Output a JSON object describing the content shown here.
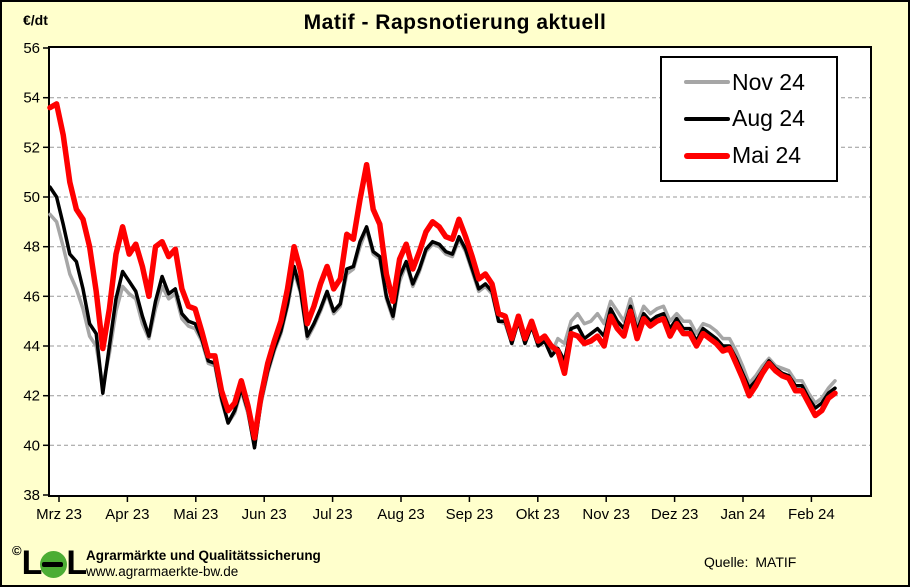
{
  "chart_data": {
    "type": "line",
    "title": "Matif - Rapsnotierung aktuell",
    "ylabel": "€/dt",
    "xlabel": "",
    "ylim": [
      38,
      56
    ],
    "grid": "horizontal-dashed",
    "legend_position": "top-right",
    "y_ticks": [
      56,
      54,
      52,
      50,
      48,
      46,
      44,
      42,
      40,
      38
    ],
    "x_ticks": [
      "Mrz 23",
      "Apr 23",
      "Mai 23",
      "Jun 23",
      "Jul 23",
      "Aug 23",
      "Sep 23",
      "Okt 23",
      "Nov 23",
      "Dez 23",
      "Jan 24",
      "Feb 24"
    ],
    "series": [
      {
        "name": "Nov 24",
        "color": "#A6A6A6",
        "width": 3.5,
        "values": [
          49.3,
          49.0,
          48.0,
          46.9,
          46.3,
          45.5,
          44.4,
          44.0,
          42.4,
          43.7,
          45.4,
          46.4,
          46.1,
          45.9,
          44.9,
          44.3,
          45.5,
          46.4,
          45.9,
          46.1,
          45.1,
          44.8,
          44.7,
          44.2,
          43.3,
          43.2,
          41.8,
          40.9,
          41.3,
          42.2,
          41.3,
          40.0,
          41.7,
          42.9,
          43.8,
          44.5,
          45.6,
          47.0,
          46.1,
          44.3,
          44.8,
          45.4,
          46.1,
          45.3,
          45.6,
          46.9,
          47.1,
          48.0,
          48.7,
          47.7,
          47.5,
          45.9,
          45.1,
          46.6,
          47.3,
          46.4,
          47.0,
          47.8,
          48.1,
          48.0,
          47.7,
          47.6,
          48.3,
          47.8,
          47.0,
          46.2,
          46.4,
          46.1,
          45.0,
          44.9,
          44.1,
          45.0,
          44.1,
          44.8,
          44.1,
          44.3,
          43.7,
          44.3,
          44.1,
          45.0,
          45.3,
          44.9,
          45.0,
          45.3,
          44.9,
          45.8,
          45.4,
          45.0,
          45.9,
          44.9,
          45.6,
          45.3,
          45.5,
          45.6,
          45.0,
          45.3,
          45.0,
          45.0,
          44.5,
          44.9,
          44.8,
          44.6,
          44.3,
          44.3,
          43.8,
          43.2,
          42.5,
          42.8,
          43.2,
          43.5,
          43.2,
          43.1,
          43.0,
          42.6,
          42.6,
          42.1,
          41.7,
          41.9,
          42.3,
          42.6
        ]
      },
      {
        "name": "Aug 24",
        "color": "#000000",
        "width": 3.5,
        "values": [
          50.4,
          50.0,
          48.9,
          47.7,
          47.4,
          46.3,
          44.9,
          44.5,
          42.1,
          44.0,
          45.9,
          47.0,
          46.6,
          46.2,
          45.2,
          44.4,
          45.8,
          46.8,
          46.1,
          46.3,
          45.3,
          45.0,
          44.9,
          44.3,
          43.4,
          43.3,
          41.9,
          40.9,
          41.4,
          42.3,
          41.4,
          39.9,
          41.8,
          43.0,
          43.9,
          44.6,
          45.7,
          47.2,
          46.2,
          44.4,
          44.9,
          45.5,
          46.2,
          45.4,
          45.7,
          47.1,
          47.2,
          48.2,
          48.8,
          47.8,
          47.6,
          46.0,
          45.2,
          46.8,
          47.4,
          46.5,
          47.1,
          47.9,
          48.2,
          48.1,
          47.8,
          47.7,
          48.4,
          47.9,
          47.1,
          46.3,
          46.5,
          46.2,
          45.0,
          45.0,
          44.1,
          45.0,
          44.1,
          44.8,
          44.0,
          44.2,
          43.6,
          43.9,
          43.4,
          44.7,
          44.8,
          44.3,
          44.5,
          44.7,
          44.4,
          45.5,
          45.0,
          44.7,
          45.6,
          44.6,
          45.3,
          45.0,
          45.2,
          45.3,
          44.7,
          45.1,
          44.7,
          44.7,
          44.2,
          44.7,
          44.5,
          44.3,
          44.0,
          44.0,
          43.5,
          42.9,
          42.3,
          42.6,
          43.0,
          43.4,
          43.1,
          42.9,
          42.8,
          42.4,
          42.4,
          41.9,
          41.5,
          41.7,
          42.1,
          42.3
        ]
      },
      {
        "name": "Mai 24",
        "color": "#FF0000",
        "width": 5.5,
        "values": [
          53.6,
          53.75,
          52.5,
          50.6,
          49.5,
          49.1,
          48.0,
          46.2,
          43.9,
          45.5,
          47.7,
          48.8,
          47.7,
          48.1,
          47.2,
          46.0,
          48.0,
          48.2,
          47.6,
          47.9,
          46.3,
          45.6,
          45.5,
          44.6,
          43.6,
          43.6,
          42.2,
          41.4,
          41.7,
          42.6,
          41.6,
          40.3,
          42.0,
          43.3,
          44.2,
          45.0,
          46.3,
          48.0,
          47.0,
          44.9,
          45.6,
          46.5,
          47.2,
          46.3,
          46.7,
          48.5,
          48.3,
          49.9,
          51.3,
          49.5,
          48.9,
          46.9,
          45.8,
          47.5,
          48.1,
          47.1,
          47.8,
          48.6,
          49.0,
          48.8,
          48.4,
          48.3,
          49.1,
          48.4,
          47.6,
          46.7,
          46.9,
          46.5,
          45.3,
          45.2,
          44.3,
          45.2,
          44.3,
          45.0,
          44.2,
          44.4,
          44.0,
          43.8,
          42.9,
          44.5,
          44.4,
          44.1,
          44.2,
          44.4,
          44.0,
          45.2,
          44.7,
          44.4,
          45.4,
          44.3,
          45.1,
          44.8,
          45.0,
          45.1,
          44.4,
          44.9,
          44.5,
          44.5,
          44.0,
          44.5,
          44.3,
          44.1,
          43.8,
          43.9,
          43.3,
          42.7,
          42.0,
          42.4,
          42.9,
          43.3,
          43.0,
          42.8,
          42.7,
          42.2,
          42.2,
          41.7,
          41.2,
          41.4,
          41.9,
          42.1
        ]
      }
    ]
  },
  "footer": {
    "copyright": "©",
    "logo_l1": "L",
    "logo_l2": "L",
    "line1": "Agrarmärkte und Qualitätssicherung",
    "line2": "www.agrarmaerkte-bw.de"
  },
  "source": {
    "label": "Quelle:",
    "value": "MATIF"
  }
}
